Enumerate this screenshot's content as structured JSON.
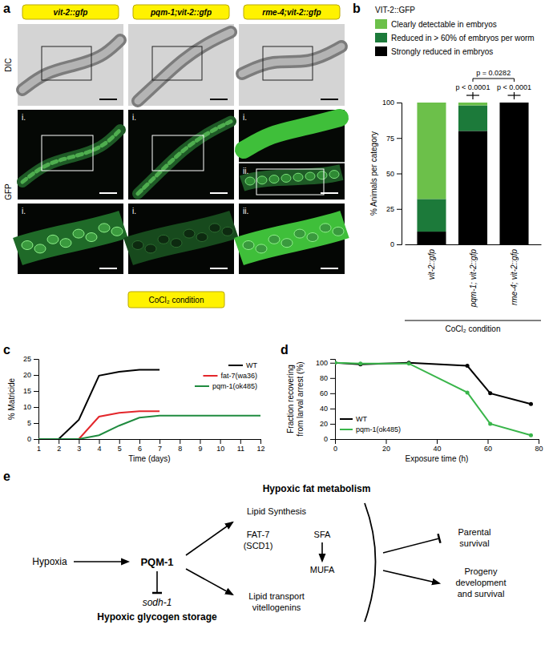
{
  "chart_data": [
    {
      "type": "bar",
      "stacked": true,
      "title": "VIT-2::GFP",
      "categories": [
        "vit-2::gfp",
        "pqm-1; vit-2::gfp",
        "rme-4; vit-2::gfp"
      ],
      "series": [
        {
          "name": "Clearly detectable in embryos",
          "color": "#6cc04a",
          "values": [
            68,
            2,
            0
          ]
        },
        {
          "name": "Reduced in > 60% of embryos per worm",
          "color": "#1c7a3a",
          "values": [
            23,
            18,
            0
          ]
        },
        {
          "name": "Strongly reduced in embryos",
          "color": "#000000",
          "values": [
            9,
            80,
            100
          ]
        }
      ],
      "ylabel": "% Animals per category",
      "xlabel": "CoCl₂ condition",
      "ylim": [
        0,
        100
      ],
      "yticks": [
        0,
        25,
        50,
        75,
        100
      ],
      "annotations": [
        "p < 0.0001",
        "p < 0.0001",
        "p = 0.0282"
      ],
      "legend": "upper left"
    },
    {
      "type": "line",
      "x": [
        1,
        2,
        3,
        4,
        5,
        6,
        7,
        8,
        9,
        10,
        11,
        12
      ],
      "series": [
        {
          "name": "WT",
          "color": "#000000",
          "values": [
            0,
            0,
            6,
            19.8,
            21,
            21.6,
            21.6,
            null,
            null,
            null,
            null,
            null
          ]
        },
        {
          "name": "fat-7(wa36)",
          "color": "#e3262b",
          "values": [
            0,
            0,
            0,
            7,
            8.2,
            8.7,
            8.7,
            null,
            null,
            null,
            null,
            null
          ]
        },
        {
          "name": "pqm-1(ok485)",
          "color": "#1f8b3f",
          "values": [
            0,
            0,
            0,
            1.2,
            4.2,
            6.7,
            7.3,
            7.3,
            7.3,
            7.3,
            7.3,
            7.3
          ]
        }
      ],
      "xlabel": "Time (days)",
      "ylabel": "% Matricide",
      "xlim": [
        1,
        12
      ],
      "xticks": [
        1,
        2,
        3,
        4,
        5,
        6,
        7,
        8,
        9,
        10,
        11,
        12
      ],
      "ylim": [
        0,
        25
      ],
      "yticks": [
        0,
        5,
        10,
        15,
        20,
        25
      ],
      "legend": "upper right"
    },
    {
      "type": "line",
      "marker": "circle",
      "x": [
        0,
        10,
        29,
        52,
        61,
        77
      ],
      "series": [
        {
          "name": "WT",
          "color": "#000000",
          "values": [
            100,
            98,
            100,
            96,
            60,
            46
          ]
        },
        {
          "name": "pqm-1(ok485)",
          "color": "#39b54a",
          "values": [
            100,
            99,
            99,
            61,
            20,
            5
          ]
        }
      ],
      "xlabel": "Exposure time (h)",
      "ylabel": [
        "Fraction recovering",
        "from larval arrest (%)"
      ],
      "xlim": [
        0,
        80
      ],
      "xticks": [
        0,
        20,
        40,
        60,
        80
      ],
      "ylim": [
        0,
        105
      ],
      "yticks": [
        0,
        20,
        40,
        60,
        80,
        100
      ],
      "legend": "lower left"
    }
  ],
  "figure": {
    "panel_labels": [
      "a",
      "b",
      "c",
      "d",
      "e"
    ],
    "panel_a": {
      "columns": [
        "vit-2::gfp",
        "pqm-1;vit-2::gfp",
        "rme-4;vit-2::gfp"
      ],
      "rows": [
        "DIC",
        "GFP"
      ],
      "insets": [
        [
          "i.",
          "i."
        ],
        [
          "i.",
          "i."
        ],
        [
          "i.",
          "ii.",
          "ii."
        ]
      ],
      "condition": "CoCl₂ condition"
    },
    "diagram": {
      "title": "Hypoxic fat metabolism",
      "hypoxia": "Hypoxia",
      "regulator": "PQM-1",
      "target": "sodh-1",
      "glycogen": "Hypoxic glycogen storage",
      "synthesis": "Lipid Synthesis",
      "enzyme": [
        "FAT-7",
        "(SCD1)"
      ],
      "sfa": "SFA",
      "mufa": "MUFA",
      "transport": [
        "Lipid transport",
        "vitellogenins"
      ],
      "parental": [
        "Parental",
        "survival"
      ],
      "progeny": [
        "Progeny",
        "development",
        "and survival"
      ]
    }
  }
}
